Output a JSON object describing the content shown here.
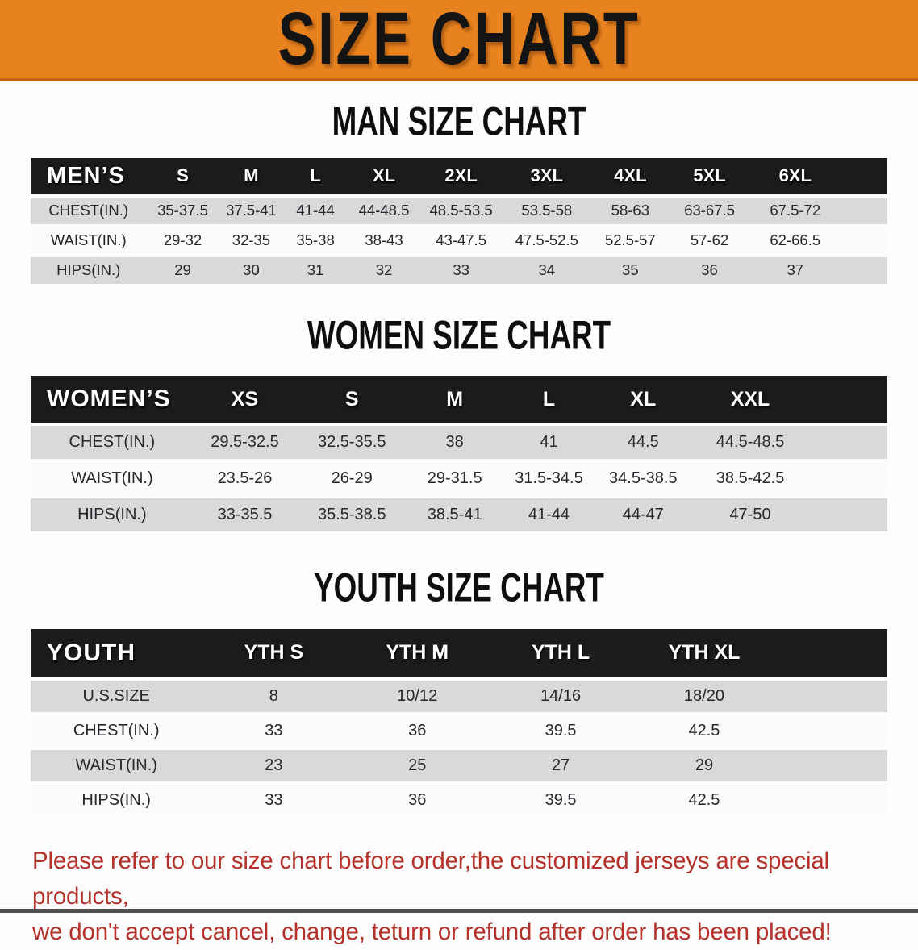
{
  "banner": {
    "title": "SIZE CHART"
  },
  "colors": {
    "banner_orange": "#E8821E",
    "header_black": "#1B1B1B",
    "row_gray": "#D9D9D9",
    "row_white": "#FBFBFB",
    "disclaimer_red": "#B5312A"
  },
  "sections": {
    "men": {
      "title": "MAN SIZE CHART",
      "header": [
        "MEN’S",
        "S",
        "M",
        "L",
        "XL",
        "2XL",
        "3XL",
        "4XL",
        "5XL",
        "6XL"
      ],
      "rows": [
        {
          "label": "CHEST(IN.)",
          "values": [
            "35-37.5",
            "37.5-41",
            "41-44",
            "44-48.5",
            "48.5-53.5",
            "53.5-58",
            "58-63",
            "63-67.5",
            "67.5-72"
          ]
        },
        {
          "label": "WAIST(IN.)",
          "values": [
            "29-32",
            "32-35",
            "35-38",
            "38-43",
            "43-47.5",
            "47.5-52.5",
            "52.5-57",
            "57-62",
            "62-66.5"
          ]
        },
        {
          "label": "HIPS(IN.)",
          "values": [
            "29",
            "30",
            "31",
            "32",
            "33",
            "34",
            "35",
            "36",
            "37"
          ]
        }
      ]
    },
    "women": {
      "title": "WOMEN SIZE CHART",
      "header": [
        "WOMEN’S",
        "XS",
        "S",
        "M",
        "L",
        "XL",
        "XXL"
      ],
      "rows": [
        {
          "label": "CHEST(IN.)",
          "values": [
            "29.5-32.5",
            "32.5-35.5",
            "38",
            "41",
            "44.5",
            "44.5-48.5"
          ]
        },
        {
          "label": "WAIST(IN.)",
          "values": [
            "23.5-26",
            "26-29",
            "29-31.5",
            "31.5-34.5",
            "34.5-38.5",
            "38.5-42.5"
          ]
        },
        {
          "label": "HIPS(IN.)",
          "values": [
            "33-35.5",
            "35.5-38.5",
            "38.5-41",
            "41-44",
            "44-47",
            "47-50"
          ]
        }
      ]
    },
    "youth": {
      "title": "YOUTH SIZE CHART",
      "header": [
        "YOUTH",
        "YTH S",
        "YTH M",
        "YTH L",
        "YTH XL"
      ],
      "rows": [
        {
          "label": "U.S.SIZE",
          "values": [
            "8",
            "10/12",
            "14/16",
            "18/20"
          ]
        },
        {
          "label": "CHEST(IN.)",
          "values": [
            "33",
            "36",
            "39.5",
            "42.5"
          ]
        },
        {
          "label": "WAIST(IN.)",
          "values": [
            "23",
            "25",
            "27",
            "29"
          ]
        },
        {
          "label": "HIPS(IN.)",
          "values": [
            "33",
            "36",
            "39.5",
            "42.5"
          ]
        }
      ]
    }
  },
  "disclaimer": {
    "line1": "Please refer to our size chart before order,the customized jerseys are special products,",
    "line2": "we don't accept cancel, change, teturn or refund after order has been placed!"
  }
}
